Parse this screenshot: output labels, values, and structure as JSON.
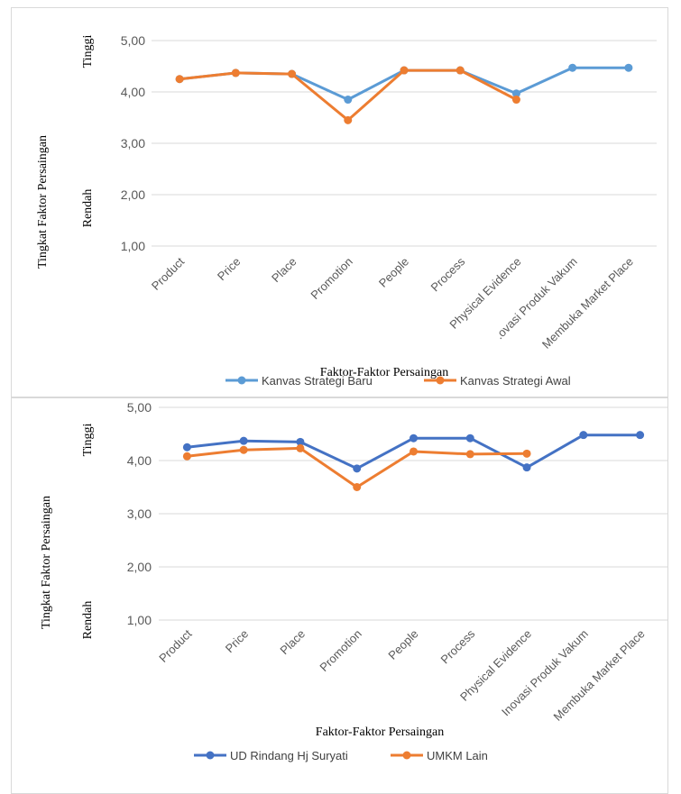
{
  "chart_data": [
    {
      "type": "line",
      "ylabel": "Tingkat Faktor Persaingan",
      "ylabel_high": "Tinggi",
      "ylabel_low": "Rendah",
      "xlabel": "Faktor-Faktor Persaingan",
      "ylim": [
        1,
        5
      ],
      "yticks": [
        "1,00",
        "2,00",
        "3,00",
        "4,00",
        "5,00"
      ],
      "grid": true,
      "legend_position": "bottom",
      "categories": [
        "Product",
        "Price",
        "Place",
        "Promotion",
        "People",
        "Process",
        "Physical Evidence",
        "Inovasi Produk Vakum",
        "Membuka Market Place"
      ],
      "category_display": [
        "Product",
        "Price",
        "Place",
        "Promotion",
        "People",
        "Process",
        "Physical Evidence",
        ".ovasi Produk Vakum",
        "Membuka Market Place"
      ],
      "series": [
        {
          "name": "Kanvas Strategi Baru",
          "color": "#5b9bd5",
          "values": [
            4.25,
            4.37,
            4.35,
            3.85,
            4.42,
            4.42,
            3.97,
            4.47,
            4.47
          ]
        },
        {
          "name": "Kanvas Strategi Awal",
          "color": "#ed7d31",
          "values": [
            4.25,
            4.37,
            4.35,
            3.45,
            4.42,
            4.42,
            3.85,
            null,
            null
          ]
        }
      ]
    },
    {
      "type": "line",
      "ylabel": "Tingkat Faktor Persaingan",
      "ylabel_high": "Tinggi",
      "ylabel_low": "Rendah",
      "xlabel": "Faktor-Faktor Persaingan",
      "ylim": [
        1,
        5
      ],
      "yticks": [
        "1,00",
        "2,00",
        "3,00",
        "4,00",
        "5,00"
      ],
      "grid": true,
      "legend_position": "bottom",
      "categories": [
        "Product",
        "Price",
        "Place",
        "Promotion",
        "People",
        "Process",
        "Physical Evidence",
        "Inovasi Produk Vakum",
        "Membuka Market Place"
      ],
      "category_display": [
        "Product",
        "Price",
        "Place",
        "Promotion",
        "People",
        "Process",
        "Physical Evidence",
        "Inovasi Produk Vakum",
        "Membuka Market Place"
      ],
      "series": [
        {
          "name": "UD Rindang Hj Suryati",
          "color": "#4472c4",
          "values": [
            4.25,
            4.37,
            4.35,
            3.85,
            4.42,
            4.42,
            3.87,
            4.48,
            4.48
          ]
        },
        {
          "name": "UMKM Lain",
          "color": "#ed7d31",
          "values": [
            4.08,
            4.2,
            4.23,
            3.5,
            4.17,
            4.12,
            4.13,
            null,
            null
          ]
        }
      ]
    }
  ]
}
